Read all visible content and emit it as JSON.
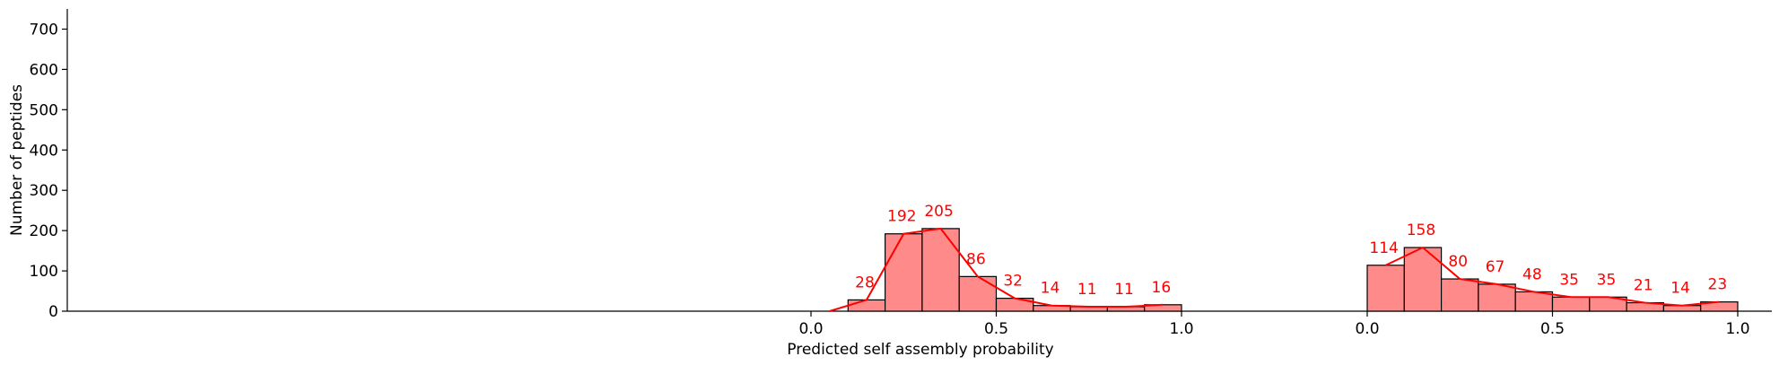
{
  "chart_data": {
    "type": "bar",
    "ylabel": "Number of peptides",
    "xlabel": "Predicted self assembly probability",
    "ylim": [
      0,
      750
    ],
    "yticks": [
      0,
      100,
      200,
      300,
      400,
      500,
      600,
      700
    ],
    "xticks": [
      "0.0",
      "0.5",
      "1.0"
    ],
    "bar_color": "#FF8A8A",
    "edge_color": "#000000",
    "kde_color": "#FF0000",
    "label_color": "#FF0000",
    "grid": false,
    "panels": [
      {
        "bin_edges": [
          0.1,
          0.2,
          0.3,
          0.4,
          0.5,
          0.6,
          0.7,
          0.8,
          0.9,
          1.0
        ],
        "values": [
          28,
          192,
          205,
          86,
          32,
          14,
          11,
          11,
          16
        ],
        "labels": [
          "28",
          "192",
          "205",
          "86",
          "32",
          "14",
          "11",
          "11",
          "16"
        ]
      },
      {
        "bin_edges": [
          0.0,
          0.1,
          0.2,
          0.3,
          0.4,
          0.5,
          0.6,
          0.7,
          0.8,
          0.9,
          1.0
        ],
        "values": [
          114,
          158,
          80,
          67,
          48,
          35,
          35,
          21,
          14,
          23
        ],
        "labels": [
          "114",
          "158",
          "80",
          "67",
          "48",
          "35",
          "35",
          "21",
          "14",
          "23"
        ]
      }
    ]
  }
}
